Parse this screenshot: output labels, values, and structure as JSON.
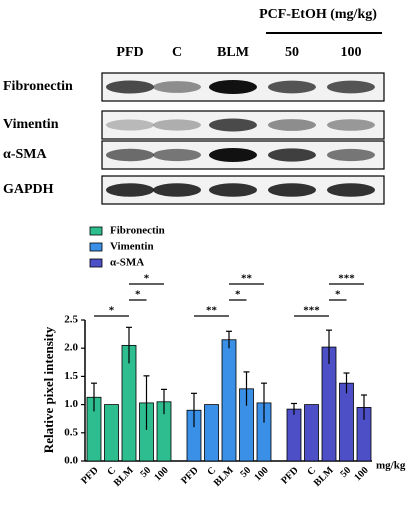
{
  "blot": {
    "group_label": "PCF-EtOH (mg/kg)",
    "lanes": [
      "PFD",
      "C",
      "BLM",
      "50",
      "100"
    ],
    "rows": [
      "Fibronectin",
      "Vimentin",
      "α-SMA",
      "GAPDH"
    ]
  },
  "chart_data": {
    "type": "bar",
    "ylabel": "Relative pixel intensity",
    "xunit": "mg/kg",
    "categories": [
      "PFD",
      "C",
      "BLM",
      "50",
      "100"
    ],
    "series": [
      {
        "name": "Fibronectin",
        "color": "#2dbd8e",
        "values": [
          1.13,
          1.0,
          2.05,
          1.03,
          1.05
        ],
        "errors": [
          0.25,
          0,
          0.32,
          0.48,
          0.22
        ]
      },
      {
        "name": "Vimentin",
        "color": "#3a90e6",
        "values": [
          0.9,
          1.0,
          2.15,
          1.28,
          1.03
        ],
        "errors": [
          0.3,
          0,
          0.15,
          0.3,
          0.35
        ]
      },
      {
        "name": "α-SMA",
        "color": "#4d4fc6",
        "values": [
          0.92,
          1.0,
          2.02,
          1.38,
          0.95
        ],
        "errors": [
          0.1,
          0,
          0.3,
          0.18,
          0.22
        ]
      }
    ],
    "ylim": [
      0,
      2.5
    ],
    "yticks": [
      {
        "value": 0,
        "label": "0.0"
      },
      0.5,
      {
        "value": 1,
        "label": "1.0"
      },
      1.5,
      {
        "value": 2,
        "label": "2.0"
      },
      2.5
    ],
    "annotations": [
      {
        "series": "Fibronectin",
        "from": "PFD",
        "to": "BLM",
        "label": "*"
      },
      {
        "series": "Fibronectin",
        "from": "BLM",
        "to": "50",
        "label": "*"
      },
      {
        "series": "Fibronectin",
        "from": "BLM",
        "to": "100",
        "label": "*"
      },
      {
        "series": "Vimentin",
        "from": "PFD",
        "to": "BLM",
        "label": "**"
      },
      {
        "series": "Vimentin",
        "from": "BLM",
        "to": "50",
        "label": "*"
      },
      {
        "series": "Vimentin",
        "from": "BLM",
        "to": "100",
        "label": "**"
      },
      {
        "series": "α-SMA",
        "from": "PFD",
        "to": "BLM",
        "label": "***"
      },
      {
        "series": "α-SMA",
        "from": "BLM",
        "to": "50",
        "label": "*"
      },
      {
        "series": "α-SMA",
        "from": "BLM",
        "to": "100",
        "label": "***"
      }
    ]
  }
}
